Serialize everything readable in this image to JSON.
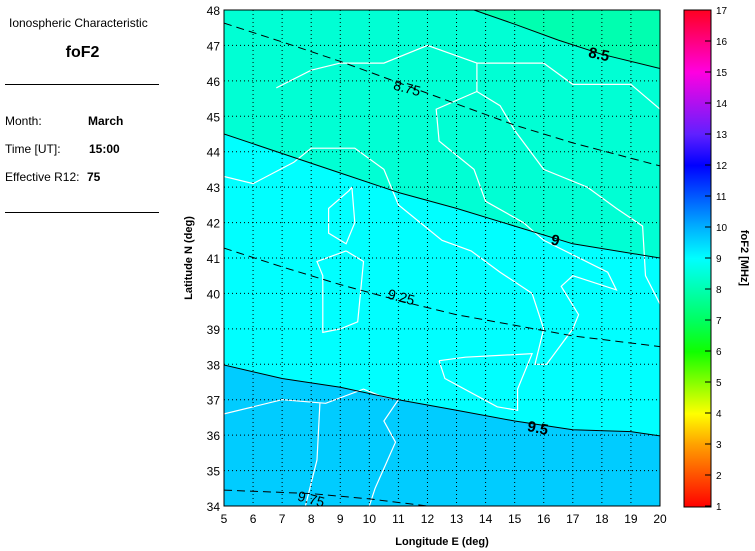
{
  "info": {
    "heading": "Ionospheric Characteristic",
    "characteristic": "foF2",
    "month_label": "Month:",
    "month": "March",
    "time_label": "Time [UT]:",
    "time": "15:00",
    "r12_label": "Effective R12:",
    "r12": "75"
  },
  "chart_data": {
    "type": "contour-map",
    "xlabel": "Longitude E (deg)",
    "ylabel": "Latitude N (deg)",
    "xlim": [
      5,
      20
    ],
    "ylim": [
      34,
      48
    ],
    "xticks": [
      5,
      6,
      7,
      8,
      9,
      10,
      11,
      12,
      13,
      14,
      15,
      16,
      17,
      18,
      19,
      20
    ],
    "yticks": [
      34,
      35,
      36,
      37,
      38,
      39,
      40,
      41,
      42,
      43,
      44,
      45,
      46,
      47,
      48
    ],
    "grid": true,
    "contours": [
      {
        "level": 8.5,
        "label": "8.5",
        "style": "solid",
        "points": [
          [
            13.6,
            48
          ],
          [
            15,
            47.6
          ],
          [
            16.5,
            47.15
          ],
          [
            18,
            46.75
          ],
          [
            20,
            46.35
          ]
        ]
      },
      {
        "level": 8.75,
        "label": "8.75",
        "style": "dashed",
        "points": [
          [
            5,
            47.63
          ],
          [
            7,
            47.1
          ],
          [
            9,
            46.55
          ],
          [
            11,
            45.95
          ],
          [
            13,
            45.35
          ],
          [
            15,
            44.75
          ],
          [
            17,
            44.25
          ],
          [
            20,
            43.6
          ]
        ]
      },
      {
        "level": 9,
        "label": "9",
        "style": "solid",
        "points": [
          [
            5,
            44.5
          ],
          [
            7,
            43.95
          ],
          [
            9,
            43.4
          ],
          [
            11,
            42.85
          ],
          [
            13,
            42.4
          ],
          [
            15,
            41.9
          ],
          [
            17,
            41.4
          ],
          [
            20,
            41.0
          ]
        ]
      },
      {
        "level": 9.25,
        "label": "9.25",
        "style": "dashed",
        "points": [
          [
            5,
            41.28
          ],
          [
            7,
            40.75
          ],
          [
            9,
            40.25
          ],
          [
            11,
            39.8
          ],
          [
            13,
            39.4
          ],
          [
            15,
            39.1
          ],
          [
            17,
            38.8
          ],
          [
            20,
            38.5
          ]
        ]
      },
      {
        "level": 9.5,
        "label": "9.5",
        "style": "solid",
        "points": [
          [
            5,
            37.98
          ],
          [
            7,
            37.6
          ],
          [
            9,
            37.35
          ],
          [
            11,
            37.0
          ],
          [
            13,
            36.7
          ],
          [
            15,
            36.4
          ],
          [
            17,
            36.15
          ],
          [
            19,
            36.1
          ],
          [
            20,
            35.98
          ]
        ]
      },
      {
        "level": 9.75,
        "label": "9.75",
        "style": "dashed",
        "points": [
          [
            5,
            34.45
          ],
          [
            8,
            34.35
          ],
          [
            10,
            34.2
          ],
          [
            12,
            34.0
          ]
        ]
      }
    ],
    "fill_bands": [
      {
        "range": "<8.5",
        "color": "#00ffb0"
      },
      {
        "range": "8.5-9",
        "color": "#00ffd4"
      },
      {
        "range": "9-9.5",
        "color": "#00ffff"
      },
      {
        "range": ">9.5",
        "color": "#00ccff"
      }
    ],
    "colorbar": {
      "label": "foF2 [MHz]",
      "range": [
        1,
        17
      ],
      "ticks": [
        1,
        2,
        3,
        4,
        5,
        6,
        7,
        8,
        9,
        10,
        11,
        12,
        13,
        14,
        15,
        16,
        17
      ]
    },
    "coastline_color": "#ffffff"
  }
}
